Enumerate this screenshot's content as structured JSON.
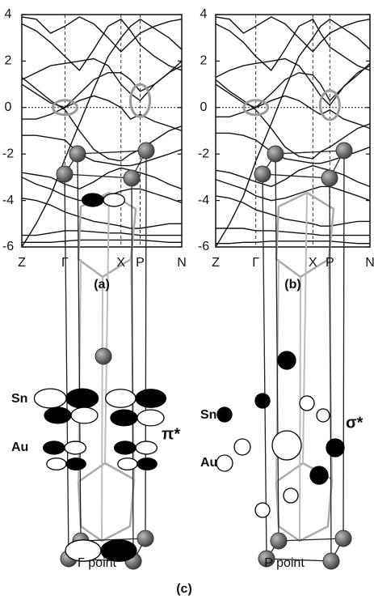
{
  "chart_data": [
    {
      "type": "line",
      "label": "(a)",
      "xlim": [
        0,
        1
      ],
      "xticks": [
        {
          "value": 0,
          "label": "Z"
        },
        {
          "value": 0.27,
          "label": "Γ"
        },
        {
          "value": 0.62,
          "label": "X"
        },
        {
          "value": 0.74,
          "label": "P"
        },
        {
          "value": 1,
          "label": "N"
        }
      ],
      "ylim": [
        -6,
        4
      ],
      "yticks": [
        -6,
        -4,
        -2,
        0,
        2,
        4
      ],
      "reference_line": 0,
      "x": [
        0,
        0.09,
        0.18,
        0.27,
        0.36,
        0.45,
        0.54,
        0.62,
        0.68,
        0.74,
        0.83,
        0.92,
        1
      ],
      "series": [
        {
          "color": "#111111",
          "values": [
            -5.8,
            -5.8,
            -5.8,
            -5.75,
            -5.7,
            -5.7,
            -5.7,
            -5.7,
            -5.7,
            -5.7,
            -5.75,
            -5.8,
            -5.8
          ]
        },
        {
          "color": "#111111",
          "values": [
            -5.5,
            -5.5,
            -5.4,
            -5.3,
            -5.3,
            -5.35,
            -5.4,
            -5.4,
            -5.45,
            -5.5,
            -5.5,
            -5.5,
            -5.5
          ]
        },
        {
          "color": "#111111",
          "values": [
            -3.9,
            -4.0,
            -4.2,
            -4.5,
            -4.7,
            -4.9,
            -5.0,
            -5.1,
            -5.2,
            -5.2,
            -5.1,
            -5.0,
            -5.0
          ]
        },
        {
          "color": "#111111",
          "values": [
            -3.0,
            -3.3,
            -3.5,
            -3.8,
            -4.0,
            -4.0,
            -3.8,
            -3.6,
            -3.5,
            -3.5,
            -3.7,
            -3.9,
            -4.1
          ]
        },
        {
          "color": "#111111",
          "values": [
            -2.8,
            -2.9,
            -3.0,
            -3.3,
            -3.5,
            -3.2,
            -2.8,
            -2.6,
            -2.7,
            -2.8,
            -3.0,
            -3.3,
            -3.5
          ]
        },
        {
          "color": "#111111",
          "values": [
            -1.2,
            -1.2,
            -1.3,
            -1.4,
            -2.0,
            -2.3,
            -2.4,
            -2.5,
            -2.5,
            -2.4,
            -2.2,
            -2.0,
            -1.8
          ]
        },
        {
          "color": "#111111",
          "values": [
            1.3,
            0.8,
            0.3,
            -0.1,
            -1.0,
            -1.8,
            -2.2,
            -2.3,
            -2.0,
            -1.8,
            -1.4,
            -1.0,
            -0.8
          ]
        },
        {
          "color": "#111111",
          "values": [
            -0.5,
            -0.5,
            -0.3,
            0.0,
            0.3,
            0.5,
            0.3,
            0.0,
            -0.5,
            -0.3,
            -0.6,
            -0.8,
            -1.0
          ]
        },
        {
          "color": "#111111",
          "values": [
            1.0,
            0.6,
            0.2,
            0.0,
            0.6,
            1.2,
            1.5,
            1.5,
            1.2,
            0.7,
            1.0,
            1.5,
            2.0
          ]
        },
        {
          "color": "#111111",
          "values": [
            1.2,
            1.5,
            1.8,
            1.9,
            2.0,
            2.1,
            1.8,
            1.0,
            0.6,
            0.3,
            1.0,
            1.5,
            1.8
          ]
        },
        {
          "color": "#111111",
          "values": [
            3.6,
            3.3,
            2.8,
            2.2,
            1.6,
            2.5,
            3.5,
            3.8,
            3.3,
            2.7,
            2.2,
            1.8,
            1.6
          ]
        },
        {
          "color": "#111111",
          "values": [
            3.9,
            3.8,
            3.2,
            3.5,
            3.9,
            3.6,
            3.0,
            2.4,
            2.8,
            3.2,
            3.5,
            3.7,
            3.8
          ]
        },
        {
          "color": "#111111",
          "values": [
            -6.0,
            -5.0,
            -3.8,
            -2.2,
            -0.7,
            0.8,
            2.2,
            3.0,
            3.5,
            3.8,
            3.4,
            3.0,
            2.5
          ]
        }
      ]
    },
    {
      "type": "line",
      "label": "(b)",
      "xlim": [
        0,
        1
      ],
      "xticks": [
        {
          "value": 0,
          "label": "Z"
        },
        {
          "value": 0.26,
          "label": "Γ"
        },
        {
          "value": 0.63,
          "label": "X"
        },
        {
          "value": 0.74,
          "label": "P"
        },
        {
          "value": 1,
          "label": "N"
        }
      ],
      "ylim": [
        -6,
        4
      ],
      "yticks": [
        -6,
        -4,
        -2,
        0,
        2,
        4
      ],
      "reference_line": 0,
      "x": [
        0,
        0.09,
        0.18,
        0.26,
        0.36,
        0.45,
        0.54,
        0.63,
        0.68,
        0.74,
        0.83,
        0.92,
        1
      ],
      "series": [
        {
          "color": "#111111",
          "values": [
            -5.85,
            -5.85,
            -5.8,
            -5.8,
            -5.75,
            -5.75,
            -5.75,
            -5.75,
            -5.75,
            -5.75,
            -5.8,
            -5.85,
            -5.85
          ]
        },
        {
          "color": "#111111",
          "values": [
            -5.2,
            -5.2,
            -5.2,
            -5.3,
            -5.3,
            -5.35,
            -5.4,
            -5.45,
            -5.5,
            -5.5,
            -5.5,
            -5.5,
            -5.5
          ]
        },
        {
          "color": "#111111",
          "values": [
            -3.8,
            -3.9,
            -4.1,
            -4.4,
            -4.6,
            -4.8,
            -4.9,
            -5.0,
            -5.1,
            -5.1,
            -5.0,
            -4.9,
            -4.9
          ]
        },
        {
          "color": "#111111",
          "values": [
            -3.1,
            -3.3,
            -3.5,
            -3.8,
            -4.0,
            -3.9,
            -3.7,
            -3.5,
            -3.4,
            -3.4,
            -3.6,
            -3.8,
            -4.0
          ]
        },
        {
          "color": "#111111",
          "values": [
            -2.7,
            -2.8,
            -3.0,
            -3.2,
            -3.4,
            -3.1,
            -2.7,
            -2.5,
            -2.6,
            -2.7,
            -2.9,
            -3.2,
            -3.4
          ]
        },
        {
          "color": "#111111",
          "values": [
            -1.1,
            -1.1,
            -1.2,
            -1.4,
            -1.9,
            -2.2,
            -2.3,
            -2.4,
            -2.4,
            -2.3,
            -2.1,
            -1.9,
            -1.7
          ]
        },
        {
          "color": "#111111",
          "values": [
            1.2,
            0.7,
            0.3,
            -0.1,
            -0.9,
            -1.7,
            -2.1,
            -2.2,
            -1.9,
            -1.7,
            -1.3,
            -0.9,
            -0.7
          ]
        },
        {
          "color": "#111111",
          "values": [
            -0.4,
            -0.4,
            -0.2,
            0.0,
            0.3,
            0.5,
            0.3,
            -0.1,
            -0.3,
            -0.1,
            -0.5,
            -0.7,
            -0.9
          ]
        },
        {
          "color": "#111111",
          "values": [
            1.0,
            0.6,
            0.2,
            0.0,
            0.6,
            1.2,
            1.5,
            1.4,
            1.0,
            0.3,
            0.9,
            1.4,
            1.9
          ]
        },
        {
          "color": "#111111",
          "values": [
            1.3,
            1.6,
            1.8,
            1.9,
            2.0,
            2.1,
            1.8,
            1.0,
            0.5,
            0.1,
            0.9,
            1.5,
            1.8
          ]
        },
        {
          "color": "#111111",
          "values": [
            3.6,
            3.3,
            2.8,
            2.2,
            1.6,
            2.5,
            3.5,
            3.8,
            3.2,
            2.6,
            2.2,
            1.8,
            1.6
          ]
        },
        {
          "color": "#111111",
          "values": [
            3.9,
            3.8,
            3.2,
            3.5,
            3.9,
            3.6,
            3.0,
            2.4,
            2.8,
            3.2,
            3.5,
            3.7,
            3.8
          ]
        },
        {
          "color": "#111111",
          "values": [
            -6.0,
            -5.0,
            -3.8,
            -2.3,
            -0.7,
            0.8,
            2.2,
            3.0,
            3.5,
            3.8,
            3.4,
            3.0,
            2.5
          ]
        }
      ]
    }
  ],
  "diagram": {
    "label": "(c)",
    "left": {
      "caption": "Γ point",
      "sn": "Sn",
      "au": "Au",
      "orbital": "π*"
    },
    "right": {
      "caption": "P point",
      "sn": "Sn",
      "au": "Au",
      "orbital": "σ*"
    }
  }
}
